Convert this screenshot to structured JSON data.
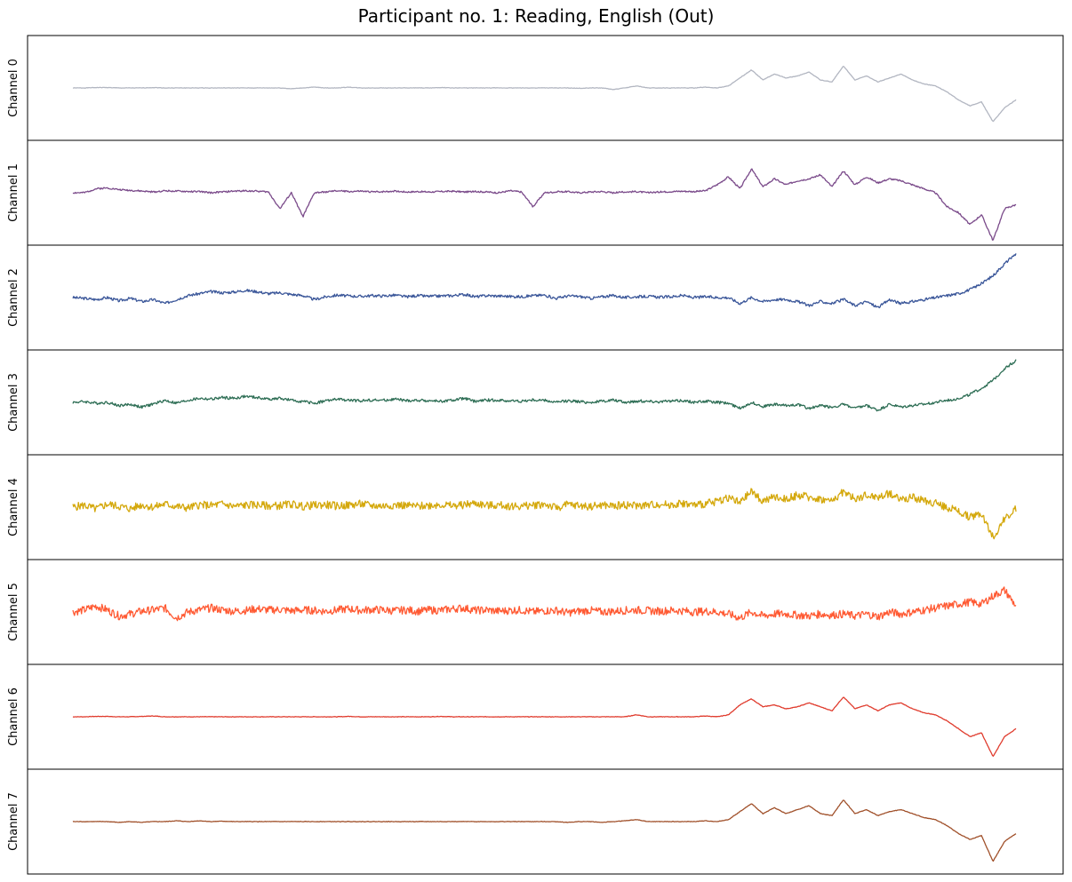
{
  "chart_data": {
    "type": "line",
    "title": "Participant no. 1: Reading, English (Out)",
    "layout": "8 stacked panels sharing one time axis, no ticks, no grid, no legend",
    "grid": false,
    "x_ticks": false,
    "y_ticks": false,
    "series": [
      {
        "name": "Channel 0",
        "color": "#b2b6c1",
        "values": [
          0.0,
          0.0,
          0.01,
          0.01,
          0.0,
          0.0,
          0.0,
          0.01,
          0.0,
          0.0,
          0.0,
          0.0,
          0.0,
          0.0,
          0.0,
          0.0,
          0.0,
          0.0,
          0.0,
          -0.02,
          0.0,
          0.02,
          0.0,
          0.0,
          0.02,
          0.0,
          0.0,
          0.0,
          0.0,
          0.0,
          0.0,
          0.0,
          0.01,
          0.0,
          0.0,
          0.0,
          0.0,
          0.0,
          0.0,
          0.0,
          0.0,
          0.0,
          0.0,
          0.0,
          -0.01,
          0.0,
          0.0,
          -0.04,
          0.0,
          0.05,
          0.0,
          0.0,
          0.0,
          0.0,
          0.0,
          0.02,
          0.0,
          0.05,
          0.25,
          0.45,
          0.2,
          0.35,
          0.25,
          0.3,
          0.4,
          0.2,
          0.15,
          0.55,
          0.2,
          0.3,
          0.15,
          0.25,
          0.35,
          0.2,
          0.1,
          0.05,
          -0.1,
          -0.3,
          -0.45,
          -0.35,
          -0.85,
          -0.5,
          -0.3
        ]
      },
      {
        "name": "Channel 1",
        "color": "#7a4a8a",
        "values": [
          0.0,
          0.0,
          0.1,
          0.12,
          0.08,
          0.06,
          0.04,
          0.02,
          0.05,
          0.04,
          0.03,
          0.03,
          0.0,
          0.02,
          0.04,
          0.05,
          0.04,
          0.02,
          -0.4,
          0.0,
          -0.6,
          0.0,
          0.02,
          0.05,
          0.03,
          0.04,
          0.02,
          0.03,
          0.04,
          0.02,
          0.03,
          0.02,
          0.03,
          0.04,
          0.02,
          0.03,
          0.02,
          0.0,
          0.05,
          0.02,
          -0.35,
          0.0,
          0.02,
          0.03,
          0.0,
          0.02,
          0.03,
          0.0,
          0.02,
          0.03,
          0.0,
          0.02,
          0.03,
          0.04,
          0.03,
          0.05,
          0.2,
          0.4,
          0.1,
          0.6,
          0.15,
          0.35,
          0.2,
          0.3,
          0.35,
          0.45,
          0.15,
          0.55,
          0.2,
          0.4,
          0.25,
          0.35,
          0.3,
          0.2,
          0.1,
          0.0,
          -0.35,
          -0.5,
          -0.8,
          -0.55,
          -1.2,
          -0.4,
          -0.3
        ]
      },
      {
        "name": "Channel 2",
        "color": "#3a5699",
        "values": [
          0.0,
          -0.02,
          -0.05,
          0.0,
          -0.08,
          -0.02,
          -0.1,
          -0.05,
          -0.15,
          -0.05,
          0.05,
          0.1,
          0.15,
          0.12,
          0.14,
          0.18,
          0.15,
          0.1,
          0.12,
          0.08,
          0.05,
          -0.05,
          0.02,
          0.06,
          0.04,
          0.03,
          0.05,
          0.04,
          0.06,
          0.02,
          0.05,
          0.03,
          0.04,
          0.05,
          0.08,
          0.02,
          0.05,
          0.04,
          0.03,
          0.02,
          0.05,
          0.06,
          -0.02,
          0.04,
          0.03,
          -0.02,
          0.02,
          0.05,
          0.0,
          0.02,
          0.03,
          0.01,
          0.02,
          0.05,
          0.0,
          0.02,
          0.0,
          0.0,
          -0.15,
          0.0,
          -0.1,
          -0.05,
          -0.05,
          -0.1,
          -0.2,
          -0.1,
          -0.15,
          -0.05,
          -0.2,
          -0.1,
          -0.25,
          -0.05,
          -0.15,
          -0.1,
          -0.05,
          0.0,
          0.05,
          0.1,
          0.2,
          0.35,
          0.55,
          0.85,
          1.1
        ]
      },
      {
        "name": "Channel 3",
        "color": "#2e6e55",
        "values": [
          0.0,
          0.02,
          -0.02,
          0.0,
          -0.08,
          -0.05,
          -0.12,
          -0.04,
          0.05,
          -0.02,
          0.05,
          0.1,
          0.08,
          0.12,
          0.1,
          0.15,
          0.12,
          0.08,
          0.1,
          0.05,
          0.02,
          -0.02,
          0.04,
          0.08,
          0.05,
          0.04,
          0.06,
          0.05,
          0.08,
          0.04,
          0.05,
          0.04,
          0.03,
          0.05,
          0.1,
          0.02,
          0.06,
          0.05,
          0.04,
          0.03,
          0.06,
          0.05,
          0.0,
          0.04,
          0.02,
          0.0,
          0.03,
          0.06,
          0.0,
          0.03,
          0.03,
          0.02,
          0.03,
          0.05,
          0.0,
          0.03,
          0.0,
          -0.02,
          -0.15,
          0.0,
          -0.1,
          -0.05,
          -0.08,
          -0.05,
          -0.15,
          -0.08,
          -0.12,
          -0.05,
          -0.15,
          -0.08,
          -0.2,
          -0.05,
          -0.12,
          -0.08,
          -0.05,
          0.0,
          0.05,
          0.1,
          0.2,
          0.35,
          0.55,
          0.85,
          1.05
        ]
      },
      {
        "name": "Channel 4",
        "color": "#d4a80c",
        "values": [
          0.0,
          0.05,
          -0.05,
          0.08,
          0.02,
          -0.04,
          0.06,
          0.0,
          0.08,
          0.02,
          -0.02,
          0.06,
          0.04,
          0.08,
          0.02,
          0.05,
          0.06,
          0.03,
          0.04,
          0.08,
          0.02,
          0.05,
          0.06,
          0.03,
          0.05,
          0.08,
          0.04,
          0.03,
          0.06,
          0.04,
          0.02,
          0.05,
          0.07,
          0.03,
          0.06,
          0.1,
          0.04,
          0.05,
          0.03,
          0.02,
          0.05,
          0.08,
          -0.02,
          0.06,
          0.04,
          0.02,
          0.05,
          0.03,
          0.06,
          0.04,
          0.05,
          0.08,
          0.06,
          0.1,
          0.05,
          0.08,
          0.15,
          0.25,
          0.1,
          0.4,
          0.15,
          0.25,
          0.2,
          0.3,
          0.25,
          0.2,
          0.15,
          0.4,
          0.2,
          0.3,
          0.25,
          0.35,
          0.2,
          0.25,
          0.15,
          0.1,
          0.0,
          -0.1,
          -0.25,
          -0.15,
          -0.75,
          -0.3,
          -0.05
        ]
      },
      {
        "name": "Channel 5",
        "color": "#ff5a33",
        "values": [
          0.0,
          0.05,
          0.15,
          0.05,
          -0.1,
          -0.05,
          0.02,
          0.05,
          0.1,
          -0.15,
          0.0,
          0.05,
          0.1,
          0.05,
          0.02,
          0.04,
          0.08,
          0.05,
          0.06,
          0.03,
          0.05,
          0.04,
          0.02,
          0.05,
          0.08,
          0.04,
          0.06,
          0.05,
          0.03,
          0.05,
          0.02,
          0.05,
          0.04,
          0.08,
          0.1,
          0.04,
          0.05,
          0.02,
          0.04,
          0.05,
          0.0,
          0.03,
          0.04,
          -0.02,
          0.02,
          0.04,
          0.0,
          0.02,
          0.04,
          0.05,
          0.03,
          0.02,
          0.04,
          0.03,
          0.0,
          0.02,
          0.0,
          -0.05,
          -0.15,
          0.0,
          -0.1,
          -0.05,
          -0.05,
          -0.08,
          -0.1,
          -0.05,
          -0.08,
          -0.05,
          -0.1,
          -0.05,
          -0.12,
          0.0,
          -0.05,
          0.0,
          0.05,
          0.1,
          0.15,
          0.2,
          0.25,
          0.2,
          0.4,
          0.55,
          0.15
        ]
      },
      {
        "name": "Channel 6",
        "color": "#e03c2e",
        "values": [
          0.0,
          0.0,
          0.01,
          0.01,
          0.0,
          0.0,
          0.01,
          0.02,
          0.0,
          0.0,
          0.0,
          0.0,
          0.0,
          0.0,
          0.0,
          0.0,
          0.0,
          0.0,
          0.0,
          0.0,
          0.0,
          0.0,
          0.0,
          0.0,
          0.01,
          0.0,
          0.0,
          0.0,
          0.0,
          0.0,
          0.0,
          0.0,
          0.01,
          0.0,
          0.0,
          0.0,
          0.0,
          0.0,
          0.0,
          0.0,
          0.0,
          0.0,
          0.0,
          0.0,
          0.0,
          0.0,
          0.0,
          0.0,
          0.0,
          0.05,
          0.0,
          0.0,
          0.0,
          0.0,
          0.0,
          0.02,
          0.0,
          0.05,
          0.3,
          0.45,
          0.25,
          0.3,
          0.2,
          0.25,
          0.35,
          0.25,
          0.15,
          0.5,
          0.2,
          0.3,
          0.15,
          0.3,
          0.35,
          0.2,
          0.1,
          0.05,
          -0.1,
          -0.3,
          -0.5,
          -0.4,
          -1.0,
          -0.5,
          -0.3
        ]
      },
      {
        "name": "Channel 7",
        "color": "#a0502a",
        "values": [
          0.0,
          0.0,
          0.0,
          0.0,
          -0.02,
          0.0,
          -0.02,
          0.0,
          0.0,
          0.02,
          0.0,
          0.02,
          0.0,
          0.01,
          0.0,
          0.0,
          0.0,
          0.0,
          0.0,
          0.0,
          0.0,
          0.0,
          0.0,
          0.0,
          0.0,
          0.0,
          0.0,
          0.0,
          0.0,
          0.0,
          0.0,
          0.0,
          0.0,
          0.0,
          0.0,
          0.0,
          0.0,
          0.0,
          0.0,
          0.0,
          0.0,
          0.0,
          0.0,
          -0.02,
          0.0,
          0.0,
          -0.02,
          0.0,
          0.02,
          0.05,
          0.0,
          0.0,
          0.0,
          0.0,
          0.0,
          0.02,
          0.0,
          0.05,
          0.25,
          0.45,
          0.2,
          0.35,
          0.2,
          0.3,
          0.4,
          0.2,
          0.15,
          0.55,
          0.2,
          0.3,
          0.15,
          0.25,
          0.3,
          0.2,
          0.1,
          0.05,
          -0.1,
          -0.3,
          -0.45,
          -0.35,
          -1.0,
          -0.5,
          -0.3
        ]
      }
    ]
  }
}
